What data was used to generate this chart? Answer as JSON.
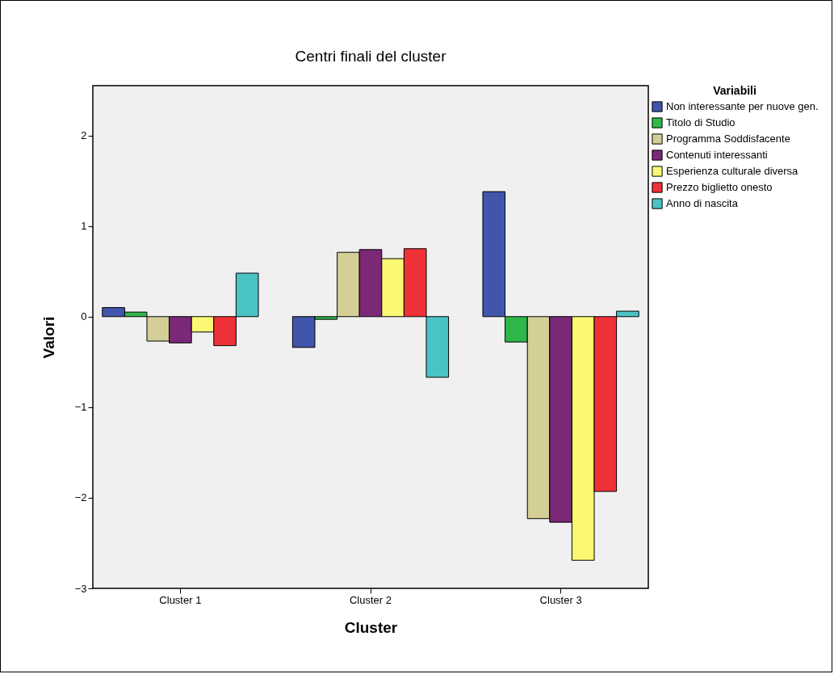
{
  "chart_data": {
    "type": "bar",
    "title": "Centri finali del cluster",
    "xlabel": "Cluster",
    "ylabel": "Valori",
    "legend_title": "Variabili",
    "categories": [
      "Cluster 1",
      "Cluster 2",
      "Cluster 3"
    ],
    "series": [
      {
        "name": "Non interessante per nuove gen.",
        "color": "#3f56ab",
        "values": [
          0.1,
          -0.34,
          1.38
        ]
      },
      {
        "name": "Titolo di Studio",
        "color": "#2eb84a",
        "values": [
          0.05,
          -0.03,
          -0.28
        ]
      },
      {
        "name": "Programma Soddisfacente",
        "color": "#d4cf96",
        "values": [
          -0.27,
          0.71,
          -2.23
        ]
      },
      {
        "name": "Contenuti interessanti",
        "color": "#7b2877",
        "values": [
          -0.29,
          0.74,
          -2.27
        ]
      },
      {
        "name": "Esperienza culturale diversa",
        "color": "#fbf873",
        "values": [
          -0.17,
          0.64,
          -2.69
        ]
      },
      {
        "name": "Prezzo biglietto onesto",
        "color": "#ef3237",
        "values": [
          -0.32,
          0.75,
          -1.93
        ]
      },
      {
        "name": "Anno di nascita",
        "color": "#4ac3c7",
        "values": [
          0.48,
          -0.67,
          0.06
        ]
      }
    ],
    "ylim": [
      -3,
      2.55
    ],
    "yticks": [
      -3,
      -2,
      -1,
      0,
      1,
      2
    ],
    "grid": false,
    "legend": "top right"
  }
}
